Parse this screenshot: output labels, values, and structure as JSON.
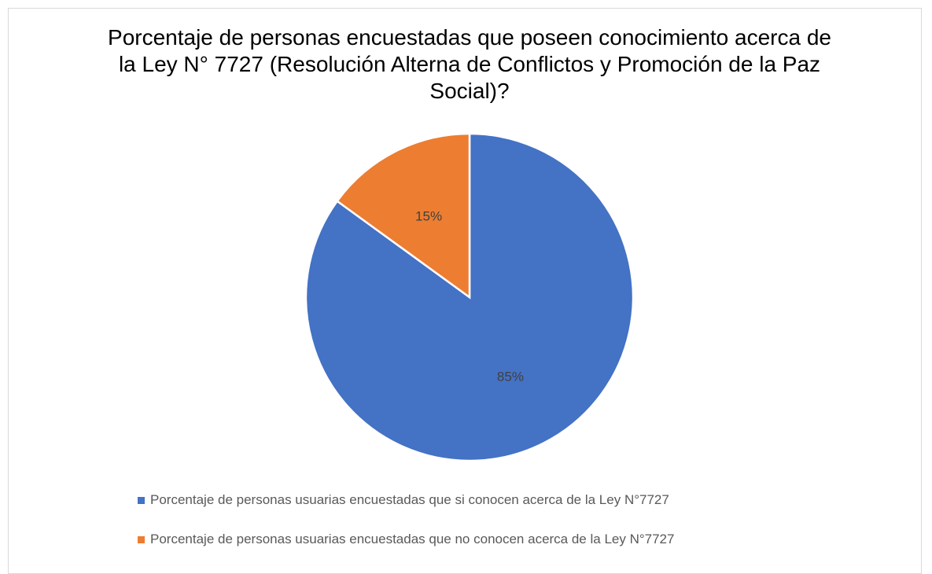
{
  "chart_data": {
    "type": "pie",
    "title": "Porcentaje de personas encuestadas que poseen conocimiento acerca de la Ley N° 7727 (Resolución Alterna de Conflictos y Promoción de la Paz Social)?",
    "categories": [
      "Porcentaje de personas usuarias encuestadas que si conocen acerca de la Ley N°7727",
      "Porcentaje de personas usuarias encuestadas que no conocen acerca de la Ley N°7727"
    ],
    "values": [
      85,
      15
    ],
    "value_labels": [
      "85%",
      "15%"
    ],
    "colors": [
      "#4472c4",
      "#ed7d31"
    ],
    "legend": "bottom"
  }
}
